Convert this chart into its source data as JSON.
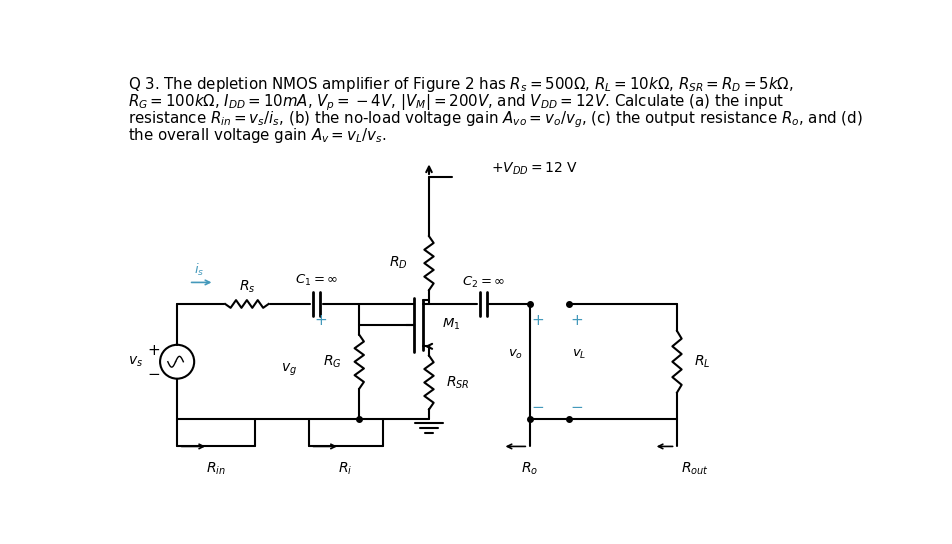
{
  "bg_color": "#ffffff",
  "circuit_color": "#000000",
  "blue_color": "#4499bb",
  "text_color": "#000000",
  "fontsize_text": 11.0,
  "fontsize_label": 10.0,
  "fontsize_small": 9.0
}
